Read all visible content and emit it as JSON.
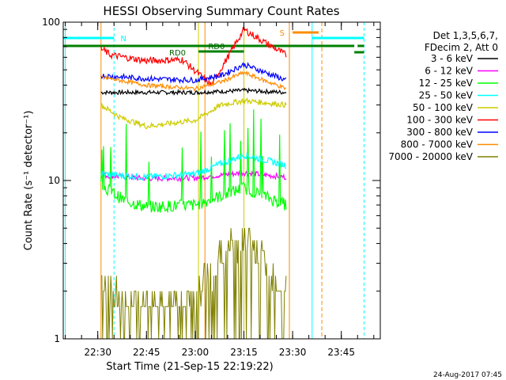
{
  "chart_data": {
    "type": "line",
    "title": "HESSI Observing Summary Count Rates",
    "xlabel": "Start Time (21-Sep-15 22:19:22)",
    "ylabel": "Count Rate (s⁻¹ detector⁻¹)",
    "y_scale": "log",
    "ylim": [
      1,
      100
    ],
    "xlim": [
      "22:19:22",
      "23:57:00"
    ],
    "x_ticks": [
      "22:30",
      "22:45",
      "23:00",
      "23:15",
      "23:30",
      "23:45"
    ],
    "y_ticks": [
      "1",
      "10",
      "100"
    ],
    "grid": false,
    "legend_position": "right",
    "legend_header": [
      "Det 1,3,5,6,7,",
      "FDecim 2, Att 0"
    ],
    "series": [
      {
        "name": "3 - 6 keV",
        "color": "#000000",
        "x": [
          "22:31",
          "22:45",
          "23:00",
          "23:15",
          "23:28"
        ],
        "y": [
          36,
          36,
          36,
          37,
          36
        ]
      },
      {
        "name": "6 - 12 keV",
        "color": "#ff00ff",
        "x": [
          "22:31",
          "22:45",
          "23:00",
          "23:15",
          "23:28"
        ],
        "y": [
          10.8,
          10.3,
          10.4,
          11.2,
          10.5
        ]
      },
      {
        "name": "12 - 25 keV",
        "color": "#00ff00",
        "x": [
          "22:31",
          "22:38",
          "22:45",
          "23:00",
          "23:15",
          "23:28"
        ],
        "y": [
          9.4,
          7.5,
          6.8,
          7.0,
          9.0,
          7.0
        ]
      },
      {
        "name": "25 - 50 keV",
        "color": "#00ffff",
        "x": [
          "22:31",
          "22:45",
          "23:00",
          "23:15",
          "23:28"
        ],
        "y": [
          11.0,
          10.5,
          11.0,
          14.5,
          12.5
        ]
      },
      {
        "name": "50 - 100 keV",
        "color": "#cccc00",
        "x": [
          "22:31",
          "22:37",
          "22:45",
          "23:00",
          "23:08",
          "23:15",
          "23:28"
        ],
        "y": [
          30,
          25,
          22,
          24,
          30,
          32,
          30
        ]
      },
      {
        "name": "100 - 300 keV",
        "color": "#ff0000",
        "x": [
          "22:31",
          "22:34",
          "22:45",
          "22:56",
          "23:05",
          "23:15",
          "23:19",
          "23:28"
        ],
        "y": [
          68,
          62,
          57,
          58,
          40,
          90,
          80,
          62
        ]
      },
      {
        "name": "300 - 800 keV",
        "color": "#0000ff",
        "x": [
          "22:31",
          "22:45",
          "23:00",
          "23:08",
          "23:15",
          "23:28"
        ],
        "y": [
          46,
          44,
          43,
          46,
          54,
          43
        ]
      },
      {
        "name": "800 - 7000 keV",
        "color": "#ff8c00",
        "x": [
          "22:31",
          "22:45",
          "23:00",
          "23:08",
          "23:15",
          "23:28"
        ],
        "y": [
          45,
          40,
          38,
          42,
          48,
          38
        ]
      },
      {
        "name": "7000 - 20000 keV",
        "color": "#808000",
        "x": [
          "22:31",
          "22:38",
          "22:50",
          "22:58",
          "23:04",
          "23:10",
          "23:15",
          "23:21",
          "23:28"
        ],
        "y": [
          2.5,
          1.6,
          1.6,
          1.7,
          2.6,
          3.6,
          4.2,
          3.0,
          2.0
        ]
      }
    ],
    "annotations": [
      {
        "text": "N",
        "color": "#00ffff"
      },
      {
        "text": "RD0",
        "color": "#006400"
      },
      {
        "text": "RD0",
        "color": "#006400"
      },
      {
        "text": "S",
        "color": "#ff8c00"
      }
    ],
    "timestamp": "24-Aug-2017 07:45"
  }
}
